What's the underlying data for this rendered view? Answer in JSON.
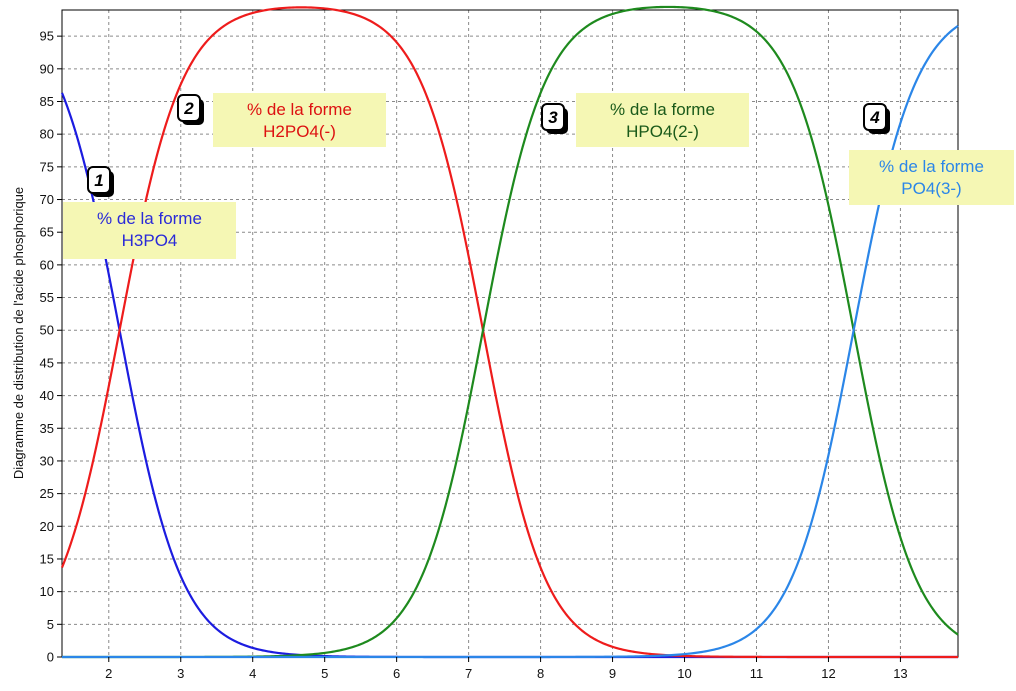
{
  "chart_data": {
    "type": "line",
    "ylabel": "Diagramme de distribution de l'acide phosphorique",
    "xlabel": "",
    "xlim": [
      1.35,
      13.8
    ],
    "ylim": [
      0,
      99
    ],
    "x_ticks": [
      2,
      3,
      4,
      5,
      6,
      7,
      8,
      9,
      10,
      11,
      12,
      13
    ],
    "x_tick_labels": [
      "2",
      "3",
      "4",
      "5",
      "6",
      "7",
      "8",
      "9",
      "10",
      "11",
      "12",
      "13"
    ],
    "y_ticks": [
      0,
      5,
      10,
      15,
      20,
      25,
      30,
      35,
      40,
      45,
      50,
      55,
      60,
      65,
      70,
      75,
      80,
      85,
      90,
      95
    ],
    "y_tick_labels": [
      "0",
      "5",
      "10",
      "15",
      "20",
      "25",
      "30",
      "35",
      "40",
      "45",
      "50",
      "55",
      "60",
      "65",
      "70",
      "75",
      "80",
      "85",
      "90",
      "95"
    ],
    "grid": true,
    "pKa": [
      2.15,
      7.2,
      12.35
    ],
    "series": [
      {
        "key": "h3po4",
        "color": "#1c1ce0"
      },
      {
        "key": "h2po4",
        "color": "#ee1c1c"
      },
      {
        "key": "hpo4",
        "color": "#1e8a1e"
      },
      {
        "key": "po4",
        "color": "#2b86e8"
      }
    ],
    "annotations": [
      {
        "number": "1",
        "line1": "% de la forme",
        "line2": "H3PO4",
        "color": "#2a2ad8"
      },
      {
        "number": "2",
        "line1": "% de la forme",
        "line2": "H2PO4(-)",
        "color": "#dd1111"
      },
      {
        "number": "3",
        "line1": "% de la forme",
        "line2": "HPO4(2-)",
        "color": "#1a5a1a"
      },
      {
        "number": "4",
        "line1": "% de la forme",
        "line2": "PO4(3-)",
        "color": "#2b86e8"
      }
    ]
  }
}
